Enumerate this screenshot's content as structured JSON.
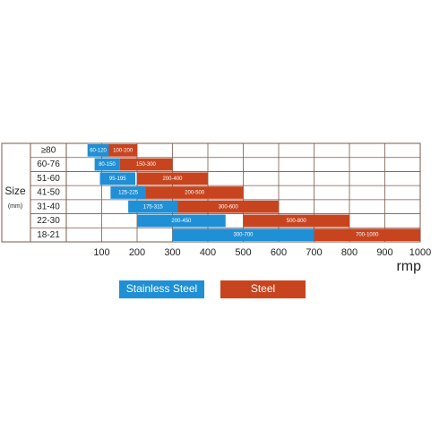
{
  "chart_data": {
    "type": "range-bar",
    "y_label": "Size",
    "y_unit": "(mm)",
    "x_label": "rmp",
    "categories": [
      "≥80",
      "60-76",
      "51-60",
      "41-50",
      "31-40",
      "22-30",
      "18-21"
    ],
    "series": [
      {
        "name": "Steel",
        "color": "#c8441e",
        "values": [
          [
            100,
            200
          ],
          [
            150,
            300
          ],
          [
            200,
            400
          ],
          [
            200,
            500
          ],
          [
            300,
            600
          ],
          [
            500,
            800
          ],
          [
            700,
            1000
          ]
        ],
        "value_labels": [
          "100-200",
          "150-300",
          "200-400",
          "200-500",
          "300-600",
          "500-800",
          "700-1000"
        ]
      },
      {
        "name": "Stainless Steel",
        "color": "#1f8fd6",
        "values": [
          [
            60,
            120
          ],
          [
            80,
            150
          ],
          [
            95,
            195
          ],
          [
            125,
            225
          ],
          [
            175,
            315
          ],
          [
            200,
            450
          ],
          [
            300,
            700
          ]
        ],
        "value_labels": [
          "60-120",
          "80-150",
          "95-195",
          "125-225",
          "175-315",
          "200-450",
          "300-700"
        ]
      }
    ],
    "xlim": [
      0,
      1000
    ],
    "xticks": [
      100,
      200,
      300,
      400,
      500,
      600,
      700,
      800,
      900,
      1000
    ],
    "grid": true
  }
}
